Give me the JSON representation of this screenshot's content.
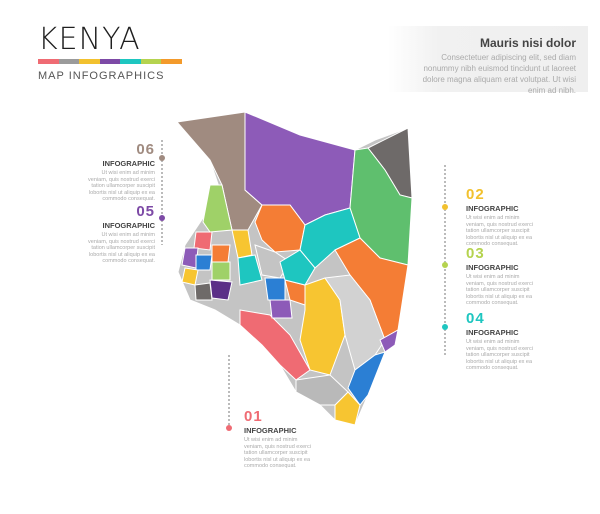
{
  "header": {
    "title": "KENYA",
    "subtitle": "MAP INFOGRAPHICS",
    "bar_colors": [
      "#ef6b73",
      "#9b9b9b",
      "#f2c12e",
      "#7d4aa6",
      "#1ec6c0",
      "#b5d34f",
      "#f39a2b"
    ]
  },
  "info": {
    "title": "Mauris nisi dolor",
    "text": "Consectetuer adipiscing elit, sed diam nonummy nibh euismod tincidunt ut laoreet dolore magna aliquam erat volutpat. Ut wisi enim ad nibh."
  },
  "callouts": [
    {
      "num": "01",
      "label": "INFOGRAPHIC",
      "text": "Ut wisi enim ad minim veniam, quis nostrud exerci tation ullamcorper suscipit lobortis nisl ut aliquip ex ea commodo consequat.",
      "color": "#ef6b73"
    },
    {
      "num": "02",
      "label": "INFOGRAPHIC",
      "text": "Ut wisi enim ad minim veniam, quis nostrud exerci tation ullamcorper suscipit lobortis nisl ut aliquip ex ea commodo consequat.",
      "color": "#f2c12e"
    },
    {
      "num": "03",
      "label": "INFOGRAPHIC",
      "text": "Ut wisi enim ad minim veniam, quis nostrud exerci tation ullamcorper suscipit lobortis nisl ut aliquip ex ea commodo consequat.",
      "color": "#b5d34f"
    },
    {
      "num": "04",
      "label": "INFOGRAPHIC",
      "text": "Ut wisi enim ad minim veniam, quis nostrud exerci tation ullamcorper suscipit lobortis nisl ut aliquip ex ea commodo consequat.",
      "color": "#1ec6c0"
    },
    {
      "num": "05",
      "label": "INFOGRAPHIC",
      "text": "Ut wisi enim ad minim veniam, quis nostrud exerci tation ullamcorper suscipit lobortis nisl ut aliquip ex ea commodo consequat.",
      "color": "#7d4aa6"
    },
    {
      "num": "06",
      "label": "INFOGRAPHIC",
      "text": "Ut wisi enim ad minim veniam, quis nostrud exerci tation ullamcorper suscipit lobortis nisl ut aliquip ex ea commodo consequat.",
      "color": "#a08b80"
    }
  ],
  "map_colors": {
    "brown": "#a08b80",
    "purple": "#8d5bb8",
    "darkgray": "#6e6a69",
    "green": "#5fbf6e",
    "orange": "#f47d35",
    "lightgreen": "#9fd168",
    "teal": "#1ec6c0",
    "yellow": "#f7c531",
    "gray": "#c4c4c4",
    "pink": "#ef6b73",
    "blue": "#2b7fd4",
    "darkpurple": "#5b2f87"
  }
}
